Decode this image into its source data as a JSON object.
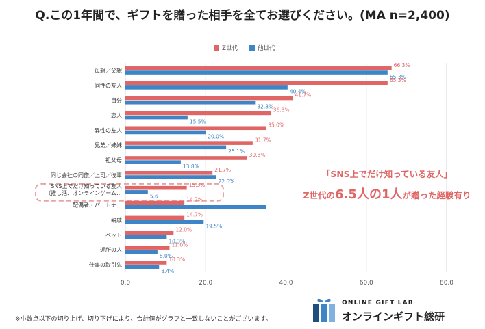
{
  "title": "Q.この1年間で、ギフトを贈った相手を全てお選びください。(MA n=2,400)",
  "chart_data": {
    "type": "bar",
    "orientation": "horizontal",
    "categories": [
      "母親／父親",
      "同性の友人",
      "自分",
      "恋人",
      "異性の友人",
      "兄弟／姉妹",
      "祖父母",
      "同じ会社の同僚／上司／後輩",
      "SNS上でだけ知っている友人（推し活、オンラインゲーム…",
      "配偶者・パートナー",
      "親戚",
      "ペット",
      "近所の人",
      "仕事の取引先"
    ],
    "series": [
      {
        "name": "Z世代",
        "color": "#e06666",
        "values": [
          66.3,
          65.3,
          41.7,
          36.3,
          35.0,
          31.7,
          30.3,
          21.7,
          15.3,
          14.7,
          14.7,
          12.0,
          11.0,
          10.3
        ],
        "labels": [
          "66.3%",
          "65.3%",
          "41.7%",
          "36.3%",
          "35.0%",
          "31.7%",
          "30.3%",
          "21.7%",
          "15.3%",
          "14.7%",
          "14.7%",
          "12.0%",
          "11.0%",
          "10.3%"
        ]
      },
      {
        "name": "他世代",
        "color": "#3d85c6",
        "values": [
          65.3,
          40.4,
          32.3,
          15.5,
          20.0,
          25.1,
          13.8,
          22.6,
          5.6,
          35.0,
          19.5,
          10.3,
          8.0,
          8.4
        ],
        "labels": [
          "65.3%",
          "40.4%",
          "32.3%",
          "15.5%",
          "20.0%",
          "25.1%",
          "13.8%",
          "22.6%",
          "5.6",
          "",
          "19.5%",
          "10.3%",
          "8.0%",
          "8.4%"
        ]
      }
    ],
    "xlim": [
      0,
      80
    ],
    "xticks": [
      "0.0",
      "20.0",
      "40.0",
      "60.0",
      "80.0"
    ],
    "grid": true,
    "legend_position": "top-center",
    "highlight_category": "SNS上でだけ知っている友人（推し活、オンラインゲーム…"
  },
  "callout": {
    "line1": "「SNS上でだけ知っている友人」",
    "line2_prefix": "Z世代の",
    "line2_big": "6.5人の1人",
    "line2_suffix": "が贈った経験有り"
  },
  "footnote": "※小数点以下の切り上げ、切り下げにより、合計値がグラフと一致しないことがございます。",
  "logo": {
    "sub": "ONLINE GIFT LAB",
    "main": "オンラインギフト総研",
    "colors": {
      "dark": "#1c4e80",
      "mid": "#3d85c6",
      "light": "#7fb2e0"
    }
  }
}
